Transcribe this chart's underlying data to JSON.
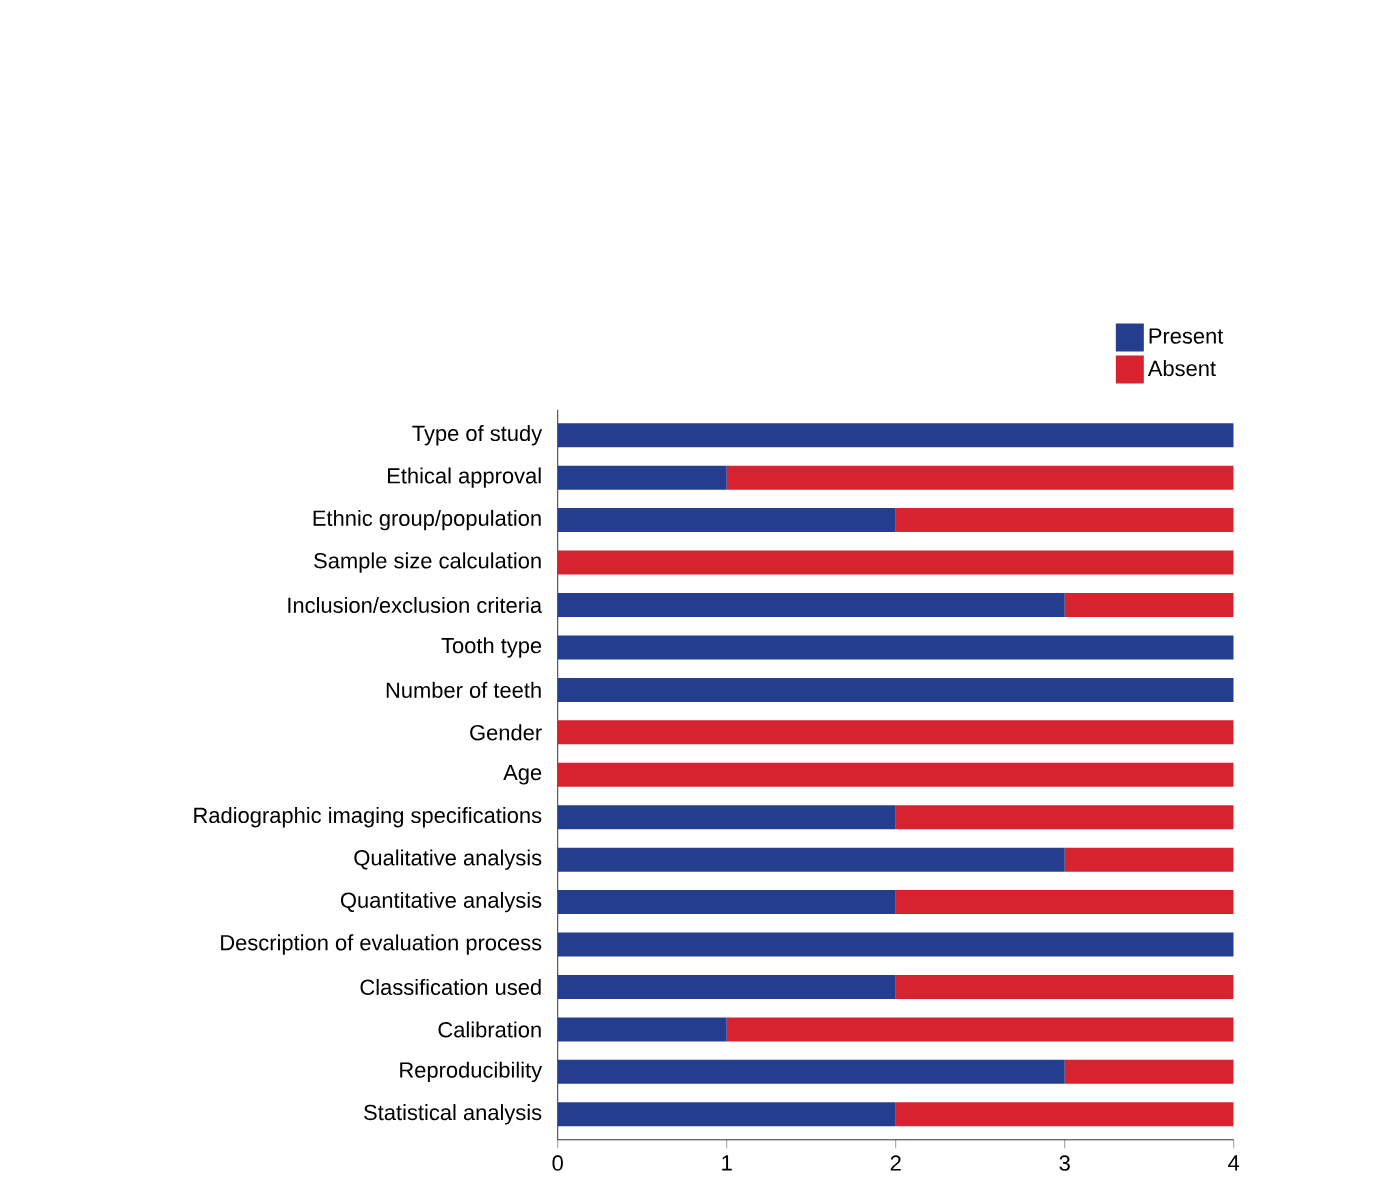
{
  "chart_data": {
    "type": "bar",
    "orientation": "horizontal",
    "stacked": true,
    "categories": [
      "Type of study",
      "Ethical approval",
      "Ethnic group/population",
      "Sample size calculation",
      "Inclusion/exclusion criteria",
      "Tooth type",
      "Number of teeth",
      "Gender",
      "Age",
      "Radiographic imaging specifications",
      "Qualitative analysis",
      "Quantitative analysis",
      "Description of evaluation process",
      "Classification used",
      "Calibration",
      "Reproducibility",
      "Statistical analysis"
    ],
    "series": [
      {
        "name": "Present",
        "color": "#253d8f",
        "values": [
          4,
          1,
          2,
          0,
          3,
          4,
          4,
          0,
          0,
          2,
          3,
          2,
          4,
          2,
          1,
          3,
          2
        ]
      },
      {
        "name": "Absent",
        "color": "#d7232f",
        "values": [
          0,
          3,
          2,
          4,
          1,
          0,
          0,
          4,
          4,
          2,
          1,
          2,
          0,
          2,
          3,
          1,
          2
        ]
      }
    ],
    "xlim": [
      0,
      4
    ],
    "xticks": [
      0,
      1,
      2,
      3,
      4
    ],
    "legend": "top right",
    "grid": false
  }
}
